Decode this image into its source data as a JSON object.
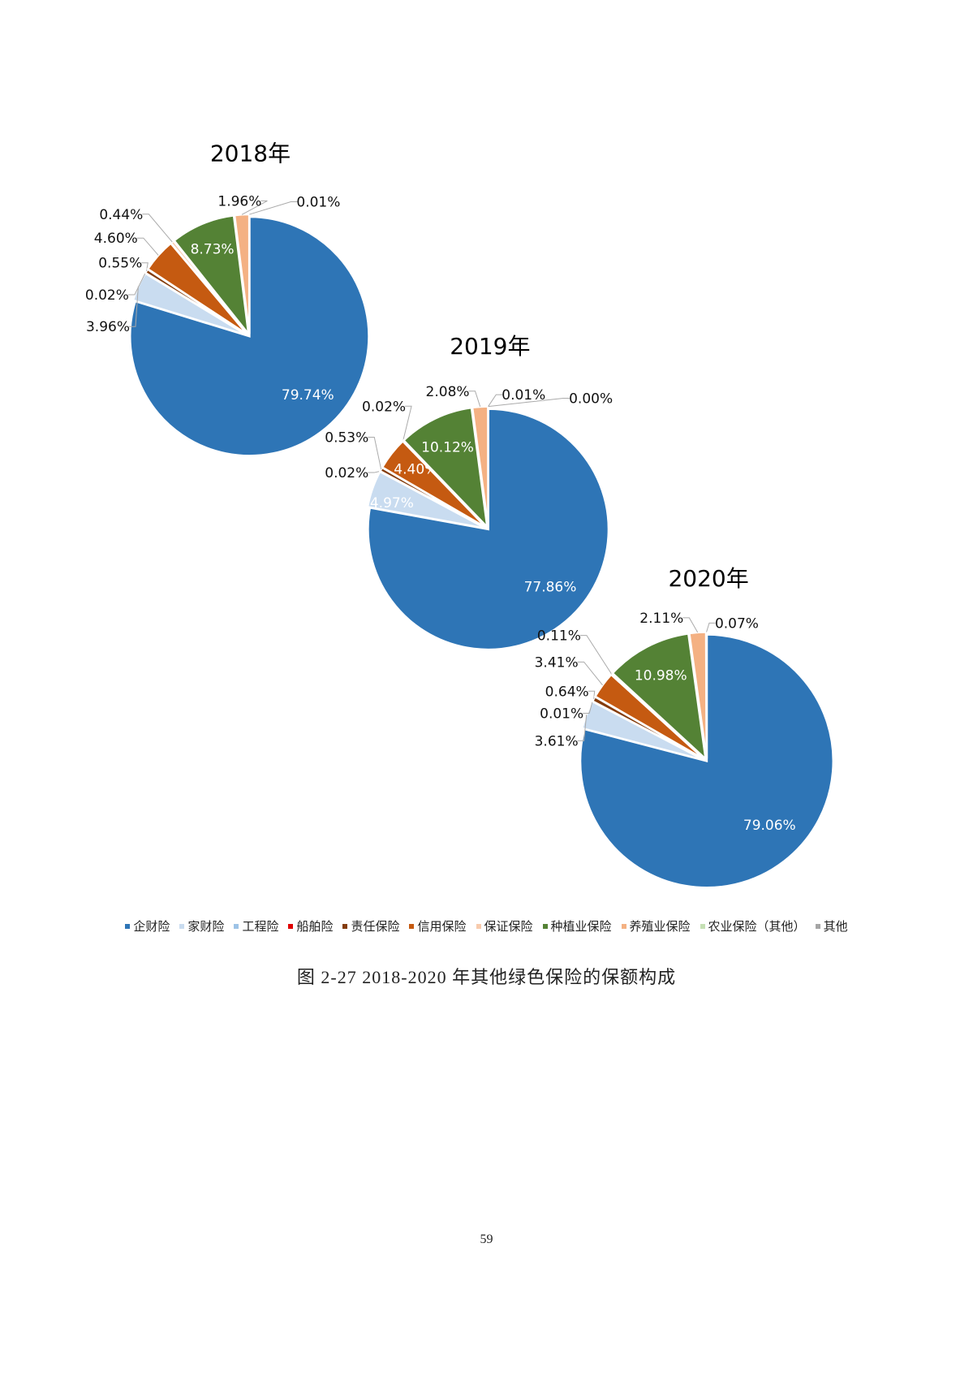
{
  "chart_data": {
    "type": "pie",
    "categories": [
      "企财险",
      "家财险",
      "工程险",
      "船舶险",
      "责任保险",
      "信用保险",
      "保证保险",
      "种植业保险",
      "养殖业保险",
      "农业保险（其他）",
      "其他"
    ],
    "colors": [
      "#2E75B6",
      "#C9DCF0",
      "#9DC3E6",
      "#E00000",
      "#843C0C",
      "#C55A11",
      "#F8CBAD",
      "#548235",
      "#F4B183",
      "#C5E0B4",
      "#A5A5A5"
    ],
    "legend_position": "bottom",
    "charts": [
      {
        "title": "2018年",
        "values": [
          79.74,
          3.96,
          0.02,
          null,
          0.55,
          4.6,
          0.44,
          8.73,
          1.96,
          0.01,
          null
        ]
      },
      {
        "title": "2019年",
        "values": [
          77.86,
          4.97,
          0.02,
          null,
          0.53,
          4.4,
          0.02,
          10.12,
          2.08,
          0.01,
          0.0
        ]
      },
      {
        "title": "2020年",
        "values": [
          79.06,
          3.61,
          0.01,
          null,
          0.64,
          3.41,
          0.11,
          10.98,
          2.11,
          0.07,
          null
        ]
      }
    ]
  },
  "caption": "图 2-27   2018-2020 年其他绿色保险的保额构成",
  "page_number": "59"
}
